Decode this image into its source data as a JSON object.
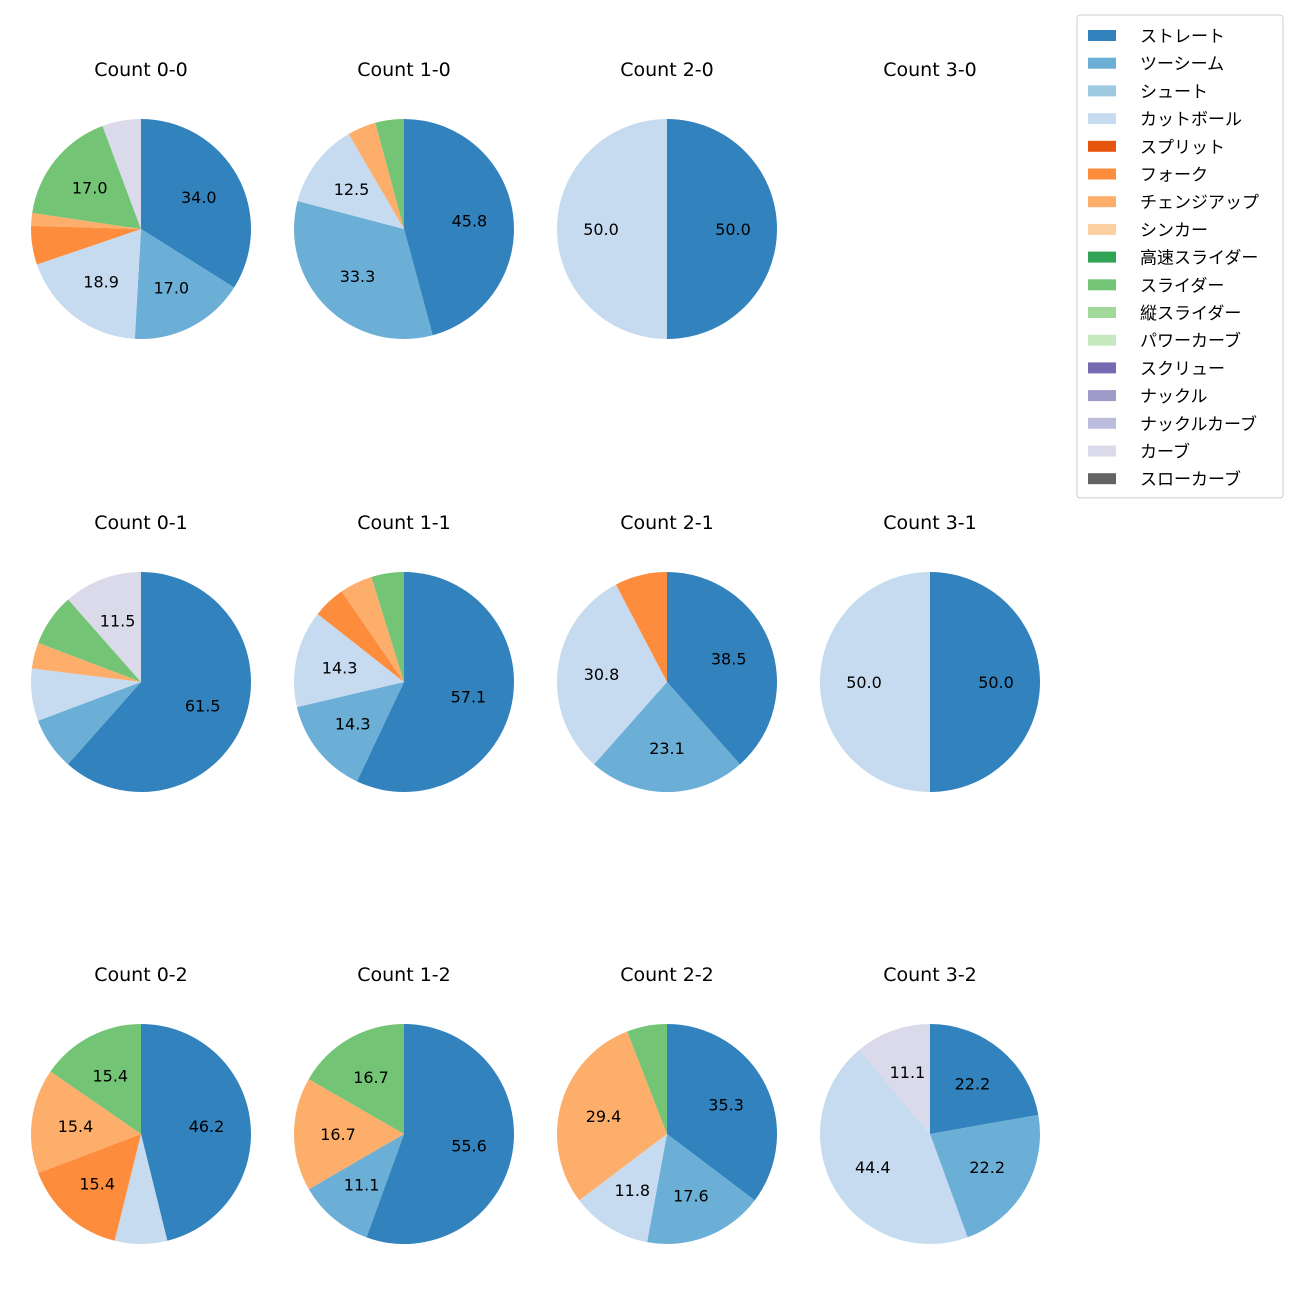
{
  "chart_data": {
    "type": "pie",
    "pitch_types": [
      {
        "name": "ストレート",
        "color": "#3182bd"
      },
      {
        "name": "ツーシーム",
        "color": "#6baed6"
      },
      {
        "name": "シュート",
        "color": "#9ecae1"
      },
      {
        "name": "カットボール",
        "color": "#c6dbef"
      },
      {
        "name": "スプリット",
        "color": "#e6550d"
      },
      {
        "name": "フォーク",
        "color": "#fd8d3c"
      },
      {
        "name": "チェンジアップ",
        "color": "#fdae6b"
      },
      {
        "name": "シンカー",
        "color": "#fdd0a2"
      },
      {
        "name": "高速スライダー",
        "color": "#31a354"
      },
      {
        "name": "スライダー",
        "color": "#74c476"
      },
      {
        "name": "縦スライダー",
        "color": "#a1d99b"
      },
      {
        "name": "パワーカーブ",
        "color": "#c7e9c0"
      },
      {
        "name": "スクリュー",
        "color": "#756bb1"
      },
      {
        "name": "ナックル",
        "color": "#9e9ac8"
      },
      {
        "name": "ナックルカーブ",
        "color": "#bcbddc"
      },
      {
        "name": "カーブ",
        "color": "#dadaeb"
      },
      {
        "name": "スローカーブ",
        "color": "#636363"
      }
    ],
    "legend_position": "top-right",
    "pies": [
      {
        "title": "Count 0-0",
        "slices": [
          {
            "type": 0,
            "value": 34.0,
            "label": "34.0"
          },
          {
            "type": 1,
            "value": 17.0,
            "label": "17.0"
          },
          {
            "type": 3,
            "value": 18.9,
            "label": "18.9"
          },
          {
            "type": 5,
            "value": 5.7,
            "label": ""
          },
          {
            "type": 6,
            "value": 1.9,
            "label": ""
          },
          {
            "type": 9,
            "value": 17.0,
            "label": "17.0"
          },
          {
            "type": 15,
            "value": 5.7,
            "label": ""
          }
        ]
      },
      {
        "title": "Count 1-0",
        "slices": [
          {
            "type": 0,
            "value": 45.8,
            "label": "45.8"
          },
          {
            "type": 1,
            "value": 33.3,
            "label": "33.3"
          },
          {
            "type": 3,
            "value": 12.5,
            "label": "12.5"
          },
          {
            "type": 6,
            "value": 4.2,
            "label": ""
          },
          {
            "type": 9,
            "value": 4.2,
            "label": ""
          }
        ]
      },
      {
        "title": "Count 2-0",
        "slices": [
          {
            "type": 0,
            "value": 50.0,
            "label": "50.0"
          },
          {
            "type": 3,
            "value": 50.0,
            "label": "50.0"
          }
        ]
      },
      {
        "title": "Count 3-0",
        "slices": []
      },
      {
        "title": "Count 0-1",
        "slices": [
          {
            "type": 0,
            "value": 61.5,
            "label": "61.5"
          },
          {
            "type": 1,
            "value": 7.7,
            "label": ""
          },
          {
            "type": 3,
            "value": 7.7,
            "label": ""
          },
          {
            "type": 6,
            "value": 3.8,
            "label": ""
          },
          {
            "type": 9,
            "value": 7.7,
            "label": ""
          },
          {
            "type": 15,
            "value": 11.5,
            "label": "11.5"
          }
        ]
      },
      {
        "title": "Count 1-1",
        "slices": [
          {
            "type": 0,
            "value": 57.1,
            "label": "57.1"
          },
          {
            "type": 1,
            "value": 14.3,
            "label": "14.3"
          },
          {
            "type": 3,
            "value": 14.3,
            "label": "14.3"
          },
          {
            "type": 5,
            "value": 4.8,
            "label": ""
          },
          {
            "type": 6,
            "value": 4.8,
            "label": ""
          },
          {
            "type": 9,
            "value": 4.8,
            "label": ""
          }
        ]
      },
      {
        "title": "Count 2-1",
        "slices": [
          {
            "type": 0,
            "value": 38.5,
            "label": "38.5"
          },
          {
            "type": 1,
            "value": 23.1,
            "label": "23.1"
          },
          {
            "type": 3,
            "value": 30.8,
            "label": "30.8"
          },
          {
            "type": 5,
            "value": 7.7,
            "label": ""
          }
        ]
      },
      {
        "title": "Count 3-1",
        "slices": [
          {
            "type": 0,
            "value": 50.0,
            "label": "50.0"
          },
          {
            "type": 3,
            "value": 50.0,
            "label": "50.0"
          }
        ]
      },
      {
        "title": "Count 0-2",
        "slices": [
          {
            "type": 0,
            "value": 46.2,
            "label": "46.2"
          },
          {
            "type": 3,
            "value": 7.7,
            "label": ""
          },
          {
            "type": 5,
            "value": 15.4,
            "label": "15.4"
          },
          {
            "type": 6,
            "value": 15.4,
            "label": "15.4"
          },
          {
            "type": 9,
            "value": 15.4,
            "label": "15.4"
          }
        ]
      },
      {
        "title": "Count 1-2",
        "slices": [
          {
            "type": 0,
            "value": 55.6,
            "label": "55.6"
          },
          {
            "type": 1,
            "value": 11.1,
            "label": "11.1"
          },
          {
            "type": 6,
            "value": 16.7,
            "label": "16.7"
          },
          {
            "type": 9,
            "value": 16.7,
            "label": "16.7"
          }
        ]
      },
      {
        "title": "Count 2-2",
        "slices": [
          {
            "type": 0,
            "value": 35.3,
            "label": "35.3"
          },
          {
            "type": 1,
            "value": 17.6,
            "label": "17.6"
          },
          {
            "type": 3,
            "value": 11.8,
            "label": "11.8"
          },
          {
            "type": 6,
            "value": 29.4,
            "label": "29.4"
          },
          {
            "type": 9,
            "value": 5.9,
            "label": ""
          }
        ]
      },
      {
        "title": "Count 3-2",
        "slices": [
          {
            "type": 0,
            "value": 22.2,
            "label": "22.2"
          },
          {
            "type": 1,
            "value": 22.2,
            "label": "22.2"
          },
          {
            "type": 3,
            "value": 44.4,
            "label": "44.4"
          },
          {
            "type": 15,
            "value": 11.1,
            "label": "11.1"
          }
        ]
      }
    ]
  }
}
